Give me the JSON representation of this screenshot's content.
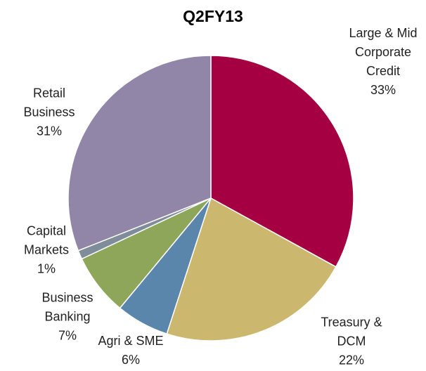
{
  "chart_data": {
    "type": "pie",
    "title": "Q2FY13",
    "categories": [
      "Large & Mid Corporate Credit",
      "Treasury & DCM",
      "Agri & SME",
      "Business Banking",
      "Capital Markets",
      "Retail Business"
    ],
    "values": [
      33,
      22,
      6,
      7,
      1,
      31
    ],
    "value_labels": [
      "33%",
      "22%",
      "6%",
      "7%",
      "1%",
      "31%"
    ],
    "colors": [
      "#a50041",
      "#cbb86e",
      "#5b86ac",
      "#8da65a",
      "#7f8c99",
      "#9185a8"
    ]
  }
}
